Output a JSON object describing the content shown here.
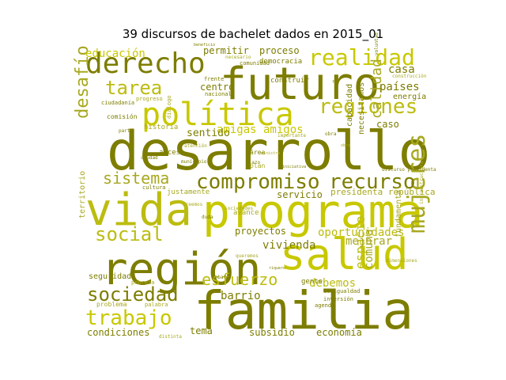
{
  "chart_data": {
    "type": "wordcloud",
    "title": "39 discursos de bachelet dados en 2015_01",
    "colors": {
      "olive": "#7d7d00",
      "yellow": "#c8c800",
      "khaki": "#a8a820",
      "gold": "#bcbc10"
    },
    "words": [
      {
        "text": "desarrollo",
        "weight": 68,
        "color": "olive"
      },
      {
        "text": "familia",
        "weight": 66,
        "color": "olive"
      },
      {
        "text": "programa",
        "weight": 58,
        "color": "yellow"
      },
      {
        "text": "futuro",
        "weight": 56,
        "color": "olive"
      },
      {
        "text": "vida",
        "weight": 56,
        "color": "gold"
      },
      {
        "text": "región",
        "weight": 56,
        "color": "olive"
      },
      {
        "text": "salud",
        "weight": 54,
        "color": "yellow"
      },
      {
        "text": "política",
        "weight": 40,
        "color": "yellow"
      },
      {
        "text": "derecho",
        "weight": 36,
        "color": "olive"
      },
      {
        "text": "mujeres",
        "weight": 30,
        "color": "khaki"
      },
      {
        "text": "realidad",
        "weight": 28,
        "color": "yellow"
      },
      {
        "text": "regiones",
        "weight": 26,
        "color": "gold"
      },
      {
        "text": "compromiso",
        "weight": 26,
        "color": "olive"
      },
      {
        "text": "recurso",
        "weight": 26,
        "color": "olive"
      },
      {
        "text": "trabajo",
        "weight": 26,
        "color": "yellow"
      },
      {
        "text": "tarea",
        "weight": 24,
        "color": "gold"
      },
      {
        "text": "social",
        "weight": 24,
        "color": "gold"
      },
      {
        "text": "sociedad",
        "weight": 24,
        "color": "olive"
      },
      {
        "text": "desafío",
        "weight": 22,
        "color": "khaki"
      },
      {
        "text": "esfuerzo",
        "weight": 20,
        "color": "gold"
      },
      {
        "text": "sistema",
        "weight": 20,
        "color": "khaki"
      },
      {
        "text": "calidad",
        "weight": 18,
        "color": "khaki"
      },
      {
        "text": "espacio",
        "weight": 16,
        "color": "gold"
      },
      {
        "text": "educación",
        "weight": 14,
        "color": "yellow"
      },
      {
        "text": "países",
        "weight": 14,
        "color": "olive"
      },
      {
        "text": "casa",
        "weight": 14,
        "color": "olive"
      },
      {
        "text": "amigas amigos",
        "weight": 14,
        "color": "yellow"
      },
      {
        "text": "vivienda",
        "weight": 14,
        "color": "olive"
      },
      {
        "text": "oportunidades",
        "weight": 14,
        "color": "gold"
      },
      {
        "text": "debemos",
        "weight": 14,
        "color": "gold"
      },
      {
        "text": "mejorar",
        "weight": 14,
        "color": "khaki"
      },
      {
        "text": "barrio",
        "weight": 14,
        "color": "olive"
      },
      {
        "text": "comuna",
        "weight": 14,
        "color": "khaki"
      },
      {
        "text": "sentido",
        "weight": 13,
        "color": "olive"
      },
      {
        "text": "servicio",
        "weight": 12,
        "color": "olive"
      },
      {
        "text": "proyectos",
        "weight": 12,
        "color": "olive"
      },
      {
        "text": "condiciones",
        "weight": 12,
        "color": "olive"
      },
      {
        "text": "subsidio",
        "weight": 12,
        "color": "olive"
      },
      {
        "text": "economía",
        "weight": 12,
        "color": "olive"
      },
      {
        "text": "tema",
        "weight": 12,
        "color": "olive"
      },
      {
        "text": "permitir",
        "weight": 12,
        "color": "olive"
      },
      {
        "text": "proceso",
        "weight": 12,
        "color": "olive"
      },
      {
        "text": "centro",
        "weight": 12,
        "color": "olive"
      },
      {
        "text": "caso",
        "weight": 12,
        "color": "olive"
      },
      {
        "text": "presidenta república",
        "weight": 11,
        "color": "khaki"
      },
      {
        "text": "energía",
        "weight": 10,
        "color": "olive"
      },
      {
        "text": "territorio",
        "weight": 10,
        "color": "khaki"
      },
      {
        "text": "seguridad",
        "weight": 10,
        "color": "olive"
      },
      {
        "text": "necesitamos",
        "weight": 10,
        "color": "olive"
      },
      {
        "text": "capacidad",
        "weight": 10,
        "color": "olive"
      },
      {
        "text": "fundamental",
        "weight": 10,
        "color": "khaki"
      },
      {
        "text": "historia",
        "weight": 9,
        "color": "khaki"
      },
      {
        "text": "democracia",
        "weight": 9,
        "color": "olive"
      },
      {
        "text": "construir",
        "weight": 9,
        "color": "olive"
      },
      {
        "text": "acceso",
        "weight": 9,
        "color": "olive"
      },
      {
        "text": "avance",
        "weight": 9,
        "color": "khaki"
      },
      {
        "text": "justamente",
        "weight": 9,
        "color": "khaki"
      },
      {
        "text": "gente",
        "weight": 9,
        "color": "olive"
      },
      {
        "text": "problema",
        "weight": 8,
        "color": "khaki"
      },
      {
        "text": "plan",
        "weight": 8,
        "color": "khaki"
      },
      {
        "text": "área",
        "weight": 8,
        "color": "olive"
      },
      {
        "text": "comisión",
        "weight": 8,
        "color": "olive"
      },
      {
        "text": "ciudadanía",
        "weight": 7,
        "color": "olive"
      },
      {
        "text": "progreso",
        "weight": 7,
        "color": "khaki"
      },
      {
        "text": "frente",
        "weight": 7,
        "color": "olive"
      },
      {
        "text": "comunidad",
        "weight": 7,
        "color": "olive"
      },
      {
        "text": "nacional",
        "weight": 7,
        "color": "olive"
      },
      {
        "text": "diálogo",
        "weight": 7,
        "color": "khaki"
      },
      {
        "text": "pobreza",
        "weight": 7,
        "color": "khaki"
      },
      {
        "text": "palabra",
        "weight": 7,
        "color": "khaki"
      },
      {
        "text": "distinta",
        "weight": 6,
        "color": "khaki"
      },
      {
        "text": "desigualdad",
        "weight": 7,
        "color": "olive"
      },
      {
        "text": "inversión",
        "weight": 7,
        "color": "olive"
      },
      {
        "text": "agenda",
        "weight": 7,
        "color": "olive"
      },
      {
        "text": "cultura",
        "weight": 7,
        "color": "olive"
      },
      {
        "text": "atención",
        "weight": 6,
        "color": "khaki"
      },
      {
        "text": "municipio",
        "weight": 6,
        "color": "olive"
      },
      {
        "text": "importante",
        "weight": 6,
        "color": "khaki"
      },
      {
        "text": "necesario",
        "weight": 6,
        "color": "khaki"
      },
      {
        "text": "discurso presidenta",
        "weight": 6,
        "color": "olive"
      },
      {
        "text": "infraestructura",
        "weight": 6,
        "color": "khaki"
      },
      {
        "text": "dimensiones",
        "weight": 6,
        "color": "khaki"
      },
      {
        "text": "sociedades",
        "weight": 6,
        "color": "khaki"
      },
      {
        "text": "plazo",
        "weight": 6,
        "color": "olive"
      },
      {
        "text": "voluntad",
        "weight": 6,
        "color": "olive"
      },
      {
        "text": "construcción",
        "weight": 6,
        "color": "khaki"
      },
      {
        "text": "debate",
        "weight": 6,
        "color": "olive"
      },
      {
        "text": "obra",
        "weight": 6,
        "color": "olive"
      },
      {
        "text": "creemos",
        "weight": 6,
        "color": "khaki"
      },
      {
        "text": "duda",
        "weight": 6,
        "color": "olive"
      },
      {
        "text": "queremos",
        "weight": 6,
        "color": "khaki"
      },
      {
        "text": "ciudad",
        "weight": 6,
        "color": "olive"
      },
      {
        "text": "parte",
        "weight": 6,
        "color": "olive"
      },
      {
        "text": "beneficio",
        "weight": 5,
        "color": "olive"
      },
      {
        "text": "fin",
        "weight": 5,
        "color": "olive"
      },
      {
        "text": "riquero",
        "weight": 5,
        "color": "olive"
      },
      {
        "text": "ministra",
        "weight": 5,
        "color": "khaki"
      },
      {
        "text": "obra",
        "weight": 5,
        "color": "khaki"
      },
      {
        "text": "iniciativa",
        "weight": 5,
        "color": "olive"
      }
    ]
  }
}
